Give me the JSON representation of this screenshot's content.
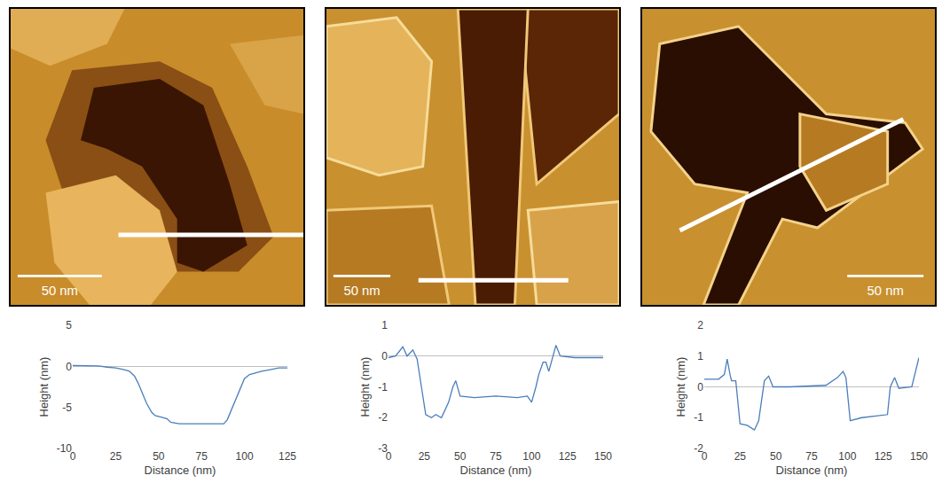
{
  "images": [
    {
      "scale_bar": "50 nm"
    },
    {
      "scale_bar": "50 nm"
    },
    {
      "scale_bar": "50 nm"
    }
  ],
  "chart_data": [
    {
      "type": "line",
      "x_label": "Distance (nm)",
      "y_label": "Height (nm)",
      "color": "#4a7ebb",
      "grid": false,
      "x": [
        0,
        5,
        10,
        15,
        20,
        25,
        30,
        33,
        36,
        38,
        41,
        43,
        46,
        48,
        52,
        55,
        57,
        62,
        70,
        80,
        88,
        90,
        93,
        97,
        100,
        103,
        110,
        115,
        120,
        125
      ],
      "values": [
        0.1,
        0.1,
        0.1,
        0.05,
        -0.1,
        -0.2,
        -0.4,
        -0.6,
        -1.2,
        -2.0,
        -3.5,
        -4.5,
        -5.6,
        -6.0,
        -6.2,
        -6.4,
        -6.8,
        -7.0,
        -7.0,
        -7.0,
        -7.0,
        -6.5,
        -5.0,
        -3.0,
        -1.5,
        -1.0,
        -0.6,
        -0.4,
        -0.2,
        -0.2
      ],
      "xlim": [
        0,
        125
      ],
      "xticks": [
        0,
        25,
        50,
        75,
        100,
        125
      ],
      "ylim": [
        -10,
        5
      ],
      "yticks": [
        -10,
        -5,
        0,
        5
      ]
    },
    {
      "type": "line",
      "x_label": "Distance (nm)",
      "y_label": "Height (nm)",
      "color": "#4a7ebb",
      "grid": false,
      "x": [
        0,
        5,
        10,
        13,
        17,
        20,
        23,
        26,
        30,
        33,
        37,
        42,
        45,
        47,
        50,
        60,
        75,
        90,
        97,
        100,
        103,
        105,
        108,
        110,
        112,
        117,
        120,
        130,
        150
      ],
      "values": [
        -0.05,
        0.0,
        0.3,
        0.0,
        0.2,
        -0.1,
        -1.0,
        -1.9,
        -2.0,
        -1.9,
        -2.0,
        -1.5,
        -1.0,
        -0.8,
        -1.3,
        -1.35,
        -1.3,
        -1.35,
        -1.3,
        -1.5,
        -1.0,
        -0.6,
        -0.2,
        -0.2,
        -0.5,
        0.35,
        0.0,
        -0.05,
        -0.05
      ],
      "xlim": [
        0,
        150
      ],
      "xticks": [
        0,
        25,
        50,
        75,
        100,
        125,
        150
      ],
      "ylim": [
        -3,
        1
      ],
      "yticks": [
        -3,
        -2,
        -1,
        0,
        1
      ]
    },
    {
      "type": "line",
      "x_label": "Distance (nm)",
      "y_label": "Height (nm)",
      "color": "#4a7ebb",
      "grid": false,
      "x": [
        0,
        10,
        14,
        16,
        18,
        19,
        22,
        25,
        30,
        35,
        38,
        42,
        45,
        48,
        60,
        85,
        93,
        97,
        99,
        102,
        110,
        120,
        128,
        130,
        133,
        136,
        145,
        150
      ],
      "values": [
        0.25,
        0.25,
        0.4,
        0.9,
        0.4,
        0.2,
        0.2,
        -1.2,
        -1.25,
        -1.4,
        -1.1,
        0.2,
        0.35,
        0.0,
        0.0,
        0.05,
        0.3,
        0.5,
        0.3,
        -1.1,
        -1.0,
        -0.95,
        -0.9,
        0.0,
        0.3,
        -0.05,
        0.0,
        0.95
      ],
      "xlim": [
        0,
        150
      ],
      "xticks": [
        0,
        25,
        50,
        75,
        100,
        125,
        150
      ],
      "ylim": [
        -2,
        2
      ],
      "yticks": [
        -2,
        -1,
        0,
        1,
        2
      ]
    }
  ]
}
